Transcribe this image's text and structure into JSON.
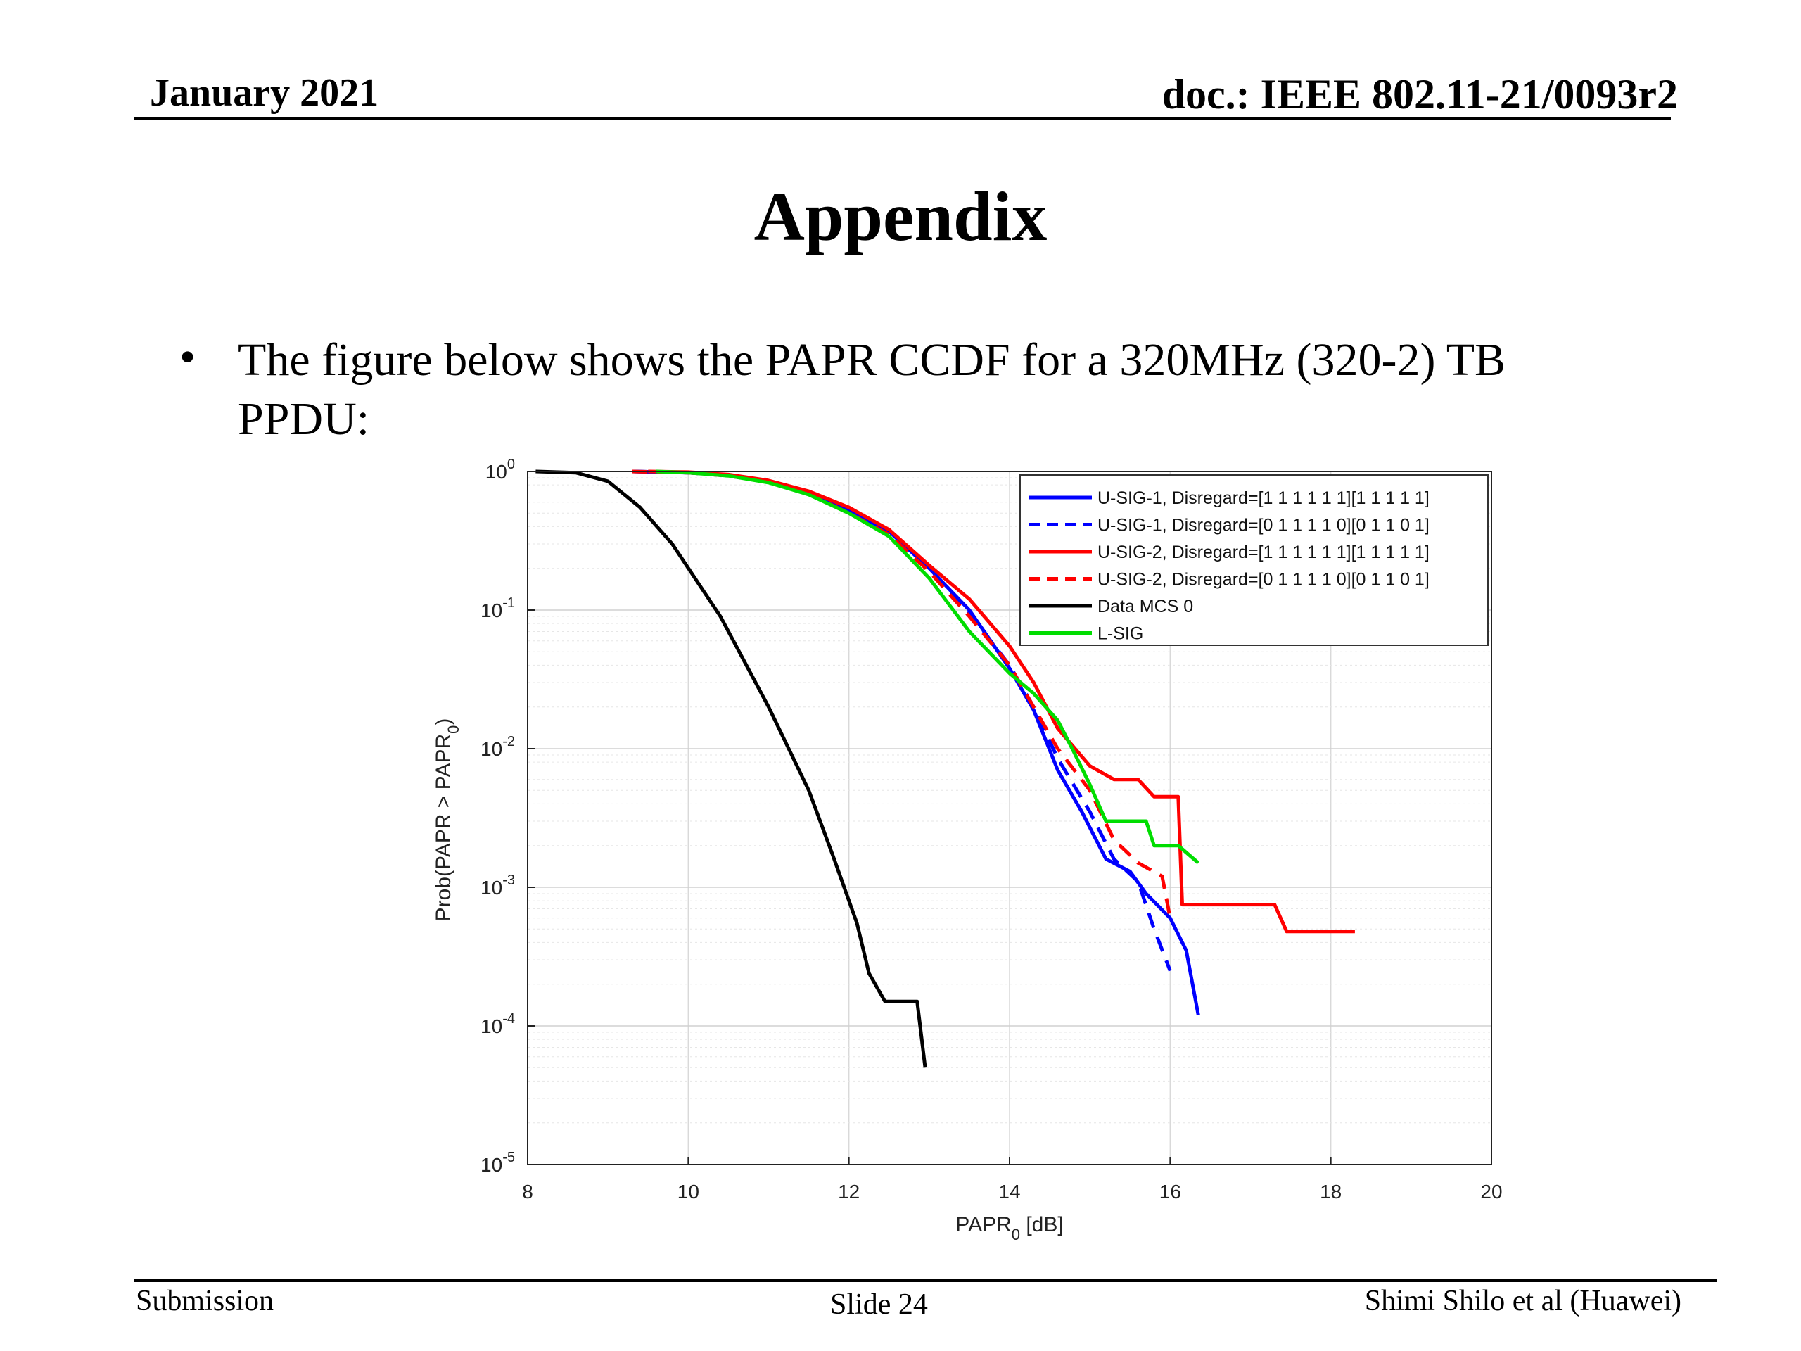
{
  "header": {
    "date": "January 2021",
    "doc": "doc.: IEEE 802.11-21/0093r2"
  },
  "slide_title": "Appendix",
  "bullet": {
    "symbol": "•",
    "text": "The figure below shows the PAPR CCDF for a 320MHz (320-2) TB PPDU:"
  },
  "footer": {
    "left": "Submission",
    "center": "Slide 24",
    "right": "Shimi Shilo et al (Huawei)"
  },
  "chart_data": {
    "type": "line",
    "title": "",
    "xlabel": "PAPR",
    "xlabel_sub": "0",
    "xlabel_unit": " [dB]",
    "ylabel": "Prob(PAPR > PAPR",
    "ylabel_sub": "0",
    "ylabel_end": ")",
    "xlim": [
      8,
      20
    ],
    "ylim": [
      1e-05,
      1
    ],
    "yscale": "log",
    "grid": true,
    "legend_position": "top-right",
    "xticks": [
      "8",
      "10",
      "12",
      "14",
      "16",
      "18",
      "20"
    ],
    "yticks": [
      {
        "base": "10",
        "exp": "0"
      },
      {
        "base": "10",
        "exp": "-1"
      },
      {
        "base": "10",
        "exp": "-2"
      },
      {
        "base": "10",
        "exp": "-3"
      },
      {
        "base": "10",
        "exp": "-4"
      },
      {
        "base": "10",
        "exp": "-5"
      }
    ],
    "series": [
      {
        "name": "U-SIG-1, Disregard=[1 1 1 1 1 1][1 1 1 1 1]",
        "color": "#0000ff",
        "dash": false,
        "points": [
          [
            9.3,
            1.0
          ],
          [
            10.0,
            0.98
          ],
          [
            10.5,
            0.94
          ],
          [
            11.0,
            0.85
          ],
          [
            11.5,
            0.7
          ],
          [
            12.0,
            0.52
          ],
          [
            12.5,
            0.37
          ],
          [
            13.0,
            0.2
          ],
          [
            13.5,
            0.1
          ],
          [
            14.0,
            0.038
          ],
          [
            14.3,
            0.019
          ],
          [
            14.6,
            0.007
          ],
          [
            14.9,
            0.0035
          ],
          [
            15.2,
            0.0016
          ],
          [
            15.5,
            0.0013
          ],
          [
            15.7,
            0.0009
          ],
          [
            16.0,
            0.0006
          ],
          [
            16.2,
            0.00035
          ],
          [
            16.35,
            0.00012
          ]
        ]
      },
      {
        "name": "U-SIG-1, Disregard=[0 1 1 1 1 0][0 1 1 0 1]",
        "color": "#0000ff",
        "dash": true,
        "points": [
          [
            9.3,
            1.0
          ],
          [
            10.0,
            0.98
          ],
          [
            10.5,
            0.93
          ],
          [
            11.0,
            0.84
          ],
          [
            11.5,
            0.69
          ],
          [
            12.0,
            0.52
          ],
          [
            12.5,
            0.36
          ],
          [
            13.0,
            0.2
          ],
          [
            13.5,
            0.095
          ],
          [
            14.0,
            0.04
          ],
          [
            14.3,
            0.02
          ],
          [
            14.6,
            0.0085
          ],
          [
            15.0,
            0.0035
          ],
          [
            15.3,
            0.0016
          ],
          [
            15.6,
            0.0011
          ],
          [
            15.8,
            0.0005
          ],
          [
            16.0,
            0.00025
          ]
        ]
      },
      {
        "name": "U-SIG-2, Disregard=[1 1 1 1 1 1][1 1 1 1 1]",
        "color": "#ff0000",
        "dash": false,
        "points": [
          [
            9.5,
            1.0
          ],
          [
            10.0,
            0.99
          ],
          [
            10.5,
            0.95
          ],
          [
            11.0,
            0.86
          ],
          [
            11.5,
            0.72
          ],
          [
            12.0,
            0.55
          ],
          [
            12.5,
            0.38
          ],
          [
            13.0,
            0.21
          ],
          [
            13.5,
            0.12
          ],
          [
            14.0,
            0.055
          ],
          [
            14.3,
            0.03
          ],
          [
            14.6,
            0.014
          ],
          [
            15.0,
            0.0075
          ],
          [
            15.3,
            0.006
          ],
          [
            15.6,
            0.006
          ],
          [
            15.8,
            0.0045
          ],
          [
            16.1,
            0.0045
          ],
          [
            16.15,
            0.00075
          ],
          [
            16.5,
            0.00075
          ],
          [
            17.3,
            0.00075
          ],
          [
            17.45,
            0.00048
          ],
          [
            18.3,
            0.00048
          ]
        ]
      },
      {
        "name": "U-SIG-2, Disregard=[0 1 1 1 1 0][0 1 1 0 1]",
        "color": "#ff0000",
        "dash": true,
        "points": [
          [
            9.3,
            1.0
          ],
          [
            10.0,
            0.98
          ],
          [
            10.5,
            0.93
          ],
          [
            11.0,
            0.84
          ],
          [
            11.5,
            0.69
          ],
          [
            12.0,
            0.5
          ],
          [
            12.5,
            0.35
          ],
          [
            13.0,
            0.19
          ],
          [
            13.5,
            0.09
          ],
          [
            14.0,
            0.04
          ],
          [
            14.3,
            0.02
          ],
          [
            14.6,
            0.01
          ],
          [
            15.0,
            0.005
          ],
          [
            15.3,
            0.0022
          ],
          [
            15.6,
            0.0015
          ],
          [
            15.9,
            0.0012
          ],
          [
            16.0,
            0.0006
          ]
        ]
      },
      {
        "name": "Data MCS 0",
        "color": "#000000",
        "dash": false,
        "points": [
          [
            8.1,
            1.0
          ],
          [
            8.6,
            0.98
          ],
          [
            9.0,
            0.85
          ],
          [
            9.4,
            0.55
          ],
          [
            9.8,
            0.3
          ],
          [
            10.4,
            0.09
          ],
          [
            11.0,
            0.02
          ],
          [
            11.5,
            0.005
          ],
          [
            11.8,
            0.0017
          ],
          [
            12.1,
            0.00055
          ],
          [
            12.25,
            0.00024
          ],
          [
            12.45,
            0.00015
          ],
          [
            12.85,
            0.00015
          ],
          [
            12.95,
            5e-05
          ]
        ]
      },
      {
        "name": "L-SIG",
        "color": "#00dd00",
        "dash": false,
        "points": [
          [
            9.6,
            1.0
          ],
          [
            10.0,
            0.98
          ],
          [
            10.5,
            0.93
          ],
          [
            11.0,
            0.83
          ],
          [
            11.5,
            0.68
          ],
          [
            12.0,
            0.5
          ],
          [
            12.5,
            0.34
          ],
          [
            13.0,
            0.17
          ],
          [
            13.5,
            0.07
          ],
          [
            14.0,
            0.035
          ],
          [
            14.3,
            0.025
          ],
          [
            14.6,
            0.016
          ],
          [
            14.8,
            0.0095
          ],
          [
            15.0,
            0.0055
          ],
          [
            15.2,
            0.003
          ],
          [
            15.7,
            0.003
          ],
          [
            15.8,
            0.002
          ],
          [
            16.1,
            0.002
          ],
          [
            16.35,
            0.0015
          ]
        ]
      }
    ]
  }
}
